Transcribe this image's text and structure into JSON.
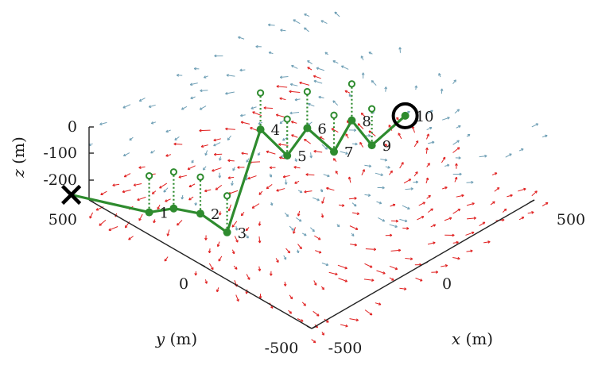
{
  "chart_data": {
    "type": "3d-line-quiver",
    "title": "",
    "axes": {
      "x": {
        "label_var": "x",
        "label_unit": "(m)",
        "ticks": [
          "-500",
          "0",
          "500"
        ],
        "tick_values": [
          -500,
          0,
          500
        ]
      },
      "y": {
        "label_var": "y",
        "label_unit": "(m)",
        "ticks": [
          "-500",
          "0",
          "500"
        ],
        "tick_values": [
          -500,
          0,
          500
        ]
      },
      "z": {
        "label_var": "z",
        "label_unit": "(m)",
        "ticks": [
          "0",
          "-100",
          "-200"
        ],
        "tick_values": [
          0,
          -100,
          -200
        ]
      }
    },
    "start_marker": "cross",
    "goal_marker": "circle",
    "waypoints": [
      {
        "label": "",
        "x": -520,
        "y": 560,
        "z": 0
      },
      {
        "label": "1",
        "x": -310,
        "y": 420,
        "z": -100
      },
      {
        "label": "",
        "x": -240,
        "y": 380,
        "z": -100
      },
      {
        "label": "2",
        "x": -200,
        "y": 300,
        "z": -100
      },
      {
        "label": "3",
        "x": -120,
        "y": 260,
        "z": -190
      },
      {
        "label": "4",
        "x": 180,
        "y": 410,
        "z": -20
      },
      {
        "label": "5",
        "x": 200,
        "y": 310,
        "z": -80
      },
      {
        "label": "6",
        "x": 290,
        "y": 310,
        "z": -20
      },
      {
        "label": "7",
        "x": 320,
        "y": 220,
        "z": -80
      },
      {
        "label": "8",
        "x": 420,
        "y": 240,
        "z": -20
      },
      {
        "label": "9",
        "x": 430,
        "y": 160,
        "z": -80
      },
      {
        "label": "10",
        "x": 620,
        "y": 200,
        "z": -80
      }
    ],
    "colors": {
      "path": "#2e8b2e",
      "current_red": "#e02020",
      "current_blue": "#6f9fb5",
      "axis": "#222222"
    }
  }
}
